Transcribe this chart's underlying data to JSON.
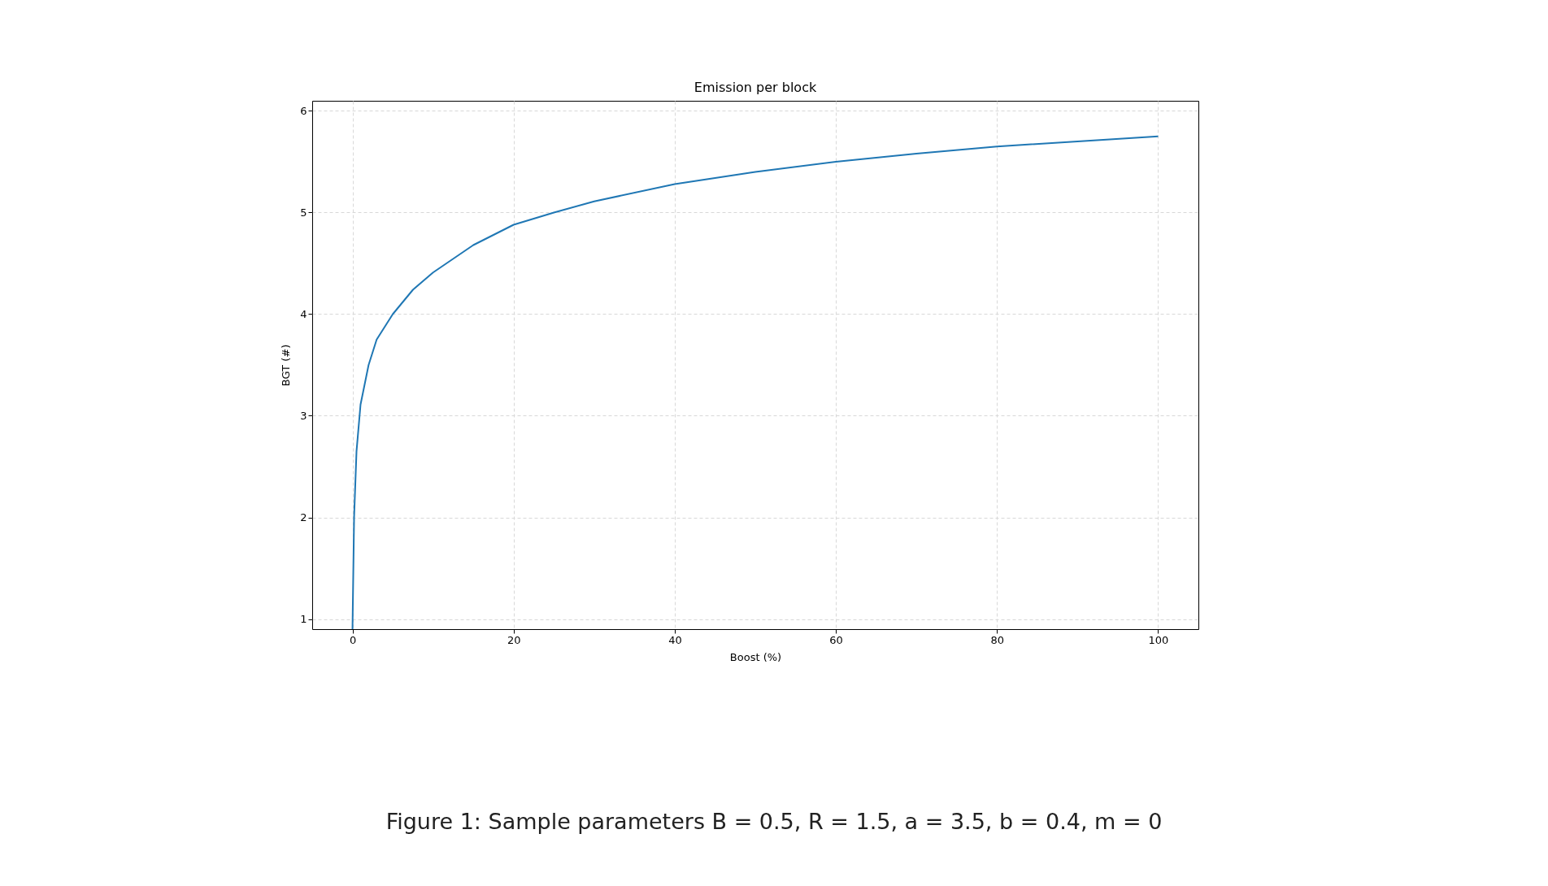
{
  "chart_data": {
    "type": "line",
    "title": "Emission per block",
    "xlabel": "Boost (%)",
    "ylabel": "BGT (#)",
    "x": [
      0,
      0.2,
      0.5,
      1,
      2,
      3,
      5,
      7.5,
      10,
      15,
      20,
      25,
      30,
      40,
      50,
      60,
      70,
      80,
      90,
      100
    ],
    "series": [
      {
        "color": "#1f77b4",
        "values": [
          0.9,
          2.0,
          2.65,
          3.11,
          3.5,
          3.75,
          4.0,
          4.24,
          4.41,
          4.68,
          4.88,
          5.0,
          5.11,
          5.28,
          5.4,
          5.5,
          5.58,
          5.65,
          5.7,
          5.75
        ]
      }
    ],
    "xlim": [
      -5,
      105
    ],
    "xticks": [
      0,
      20,
      40,
      60,
      80,
      100
    ],
    "ylim": [
      0.9,
      6.1
    ],
    "yticks": [
      1,
      2,
      3,
      4,
      5,
      6
    ],
    "grid": true,
    "line_style": "solid",
    "marker": "none",
    "annotations": [
      "Figure 1: Sample parameters B = 0.5, R = 1.5, a = 3.5, b = 0.4, m = 0"
    ]
  }
}
